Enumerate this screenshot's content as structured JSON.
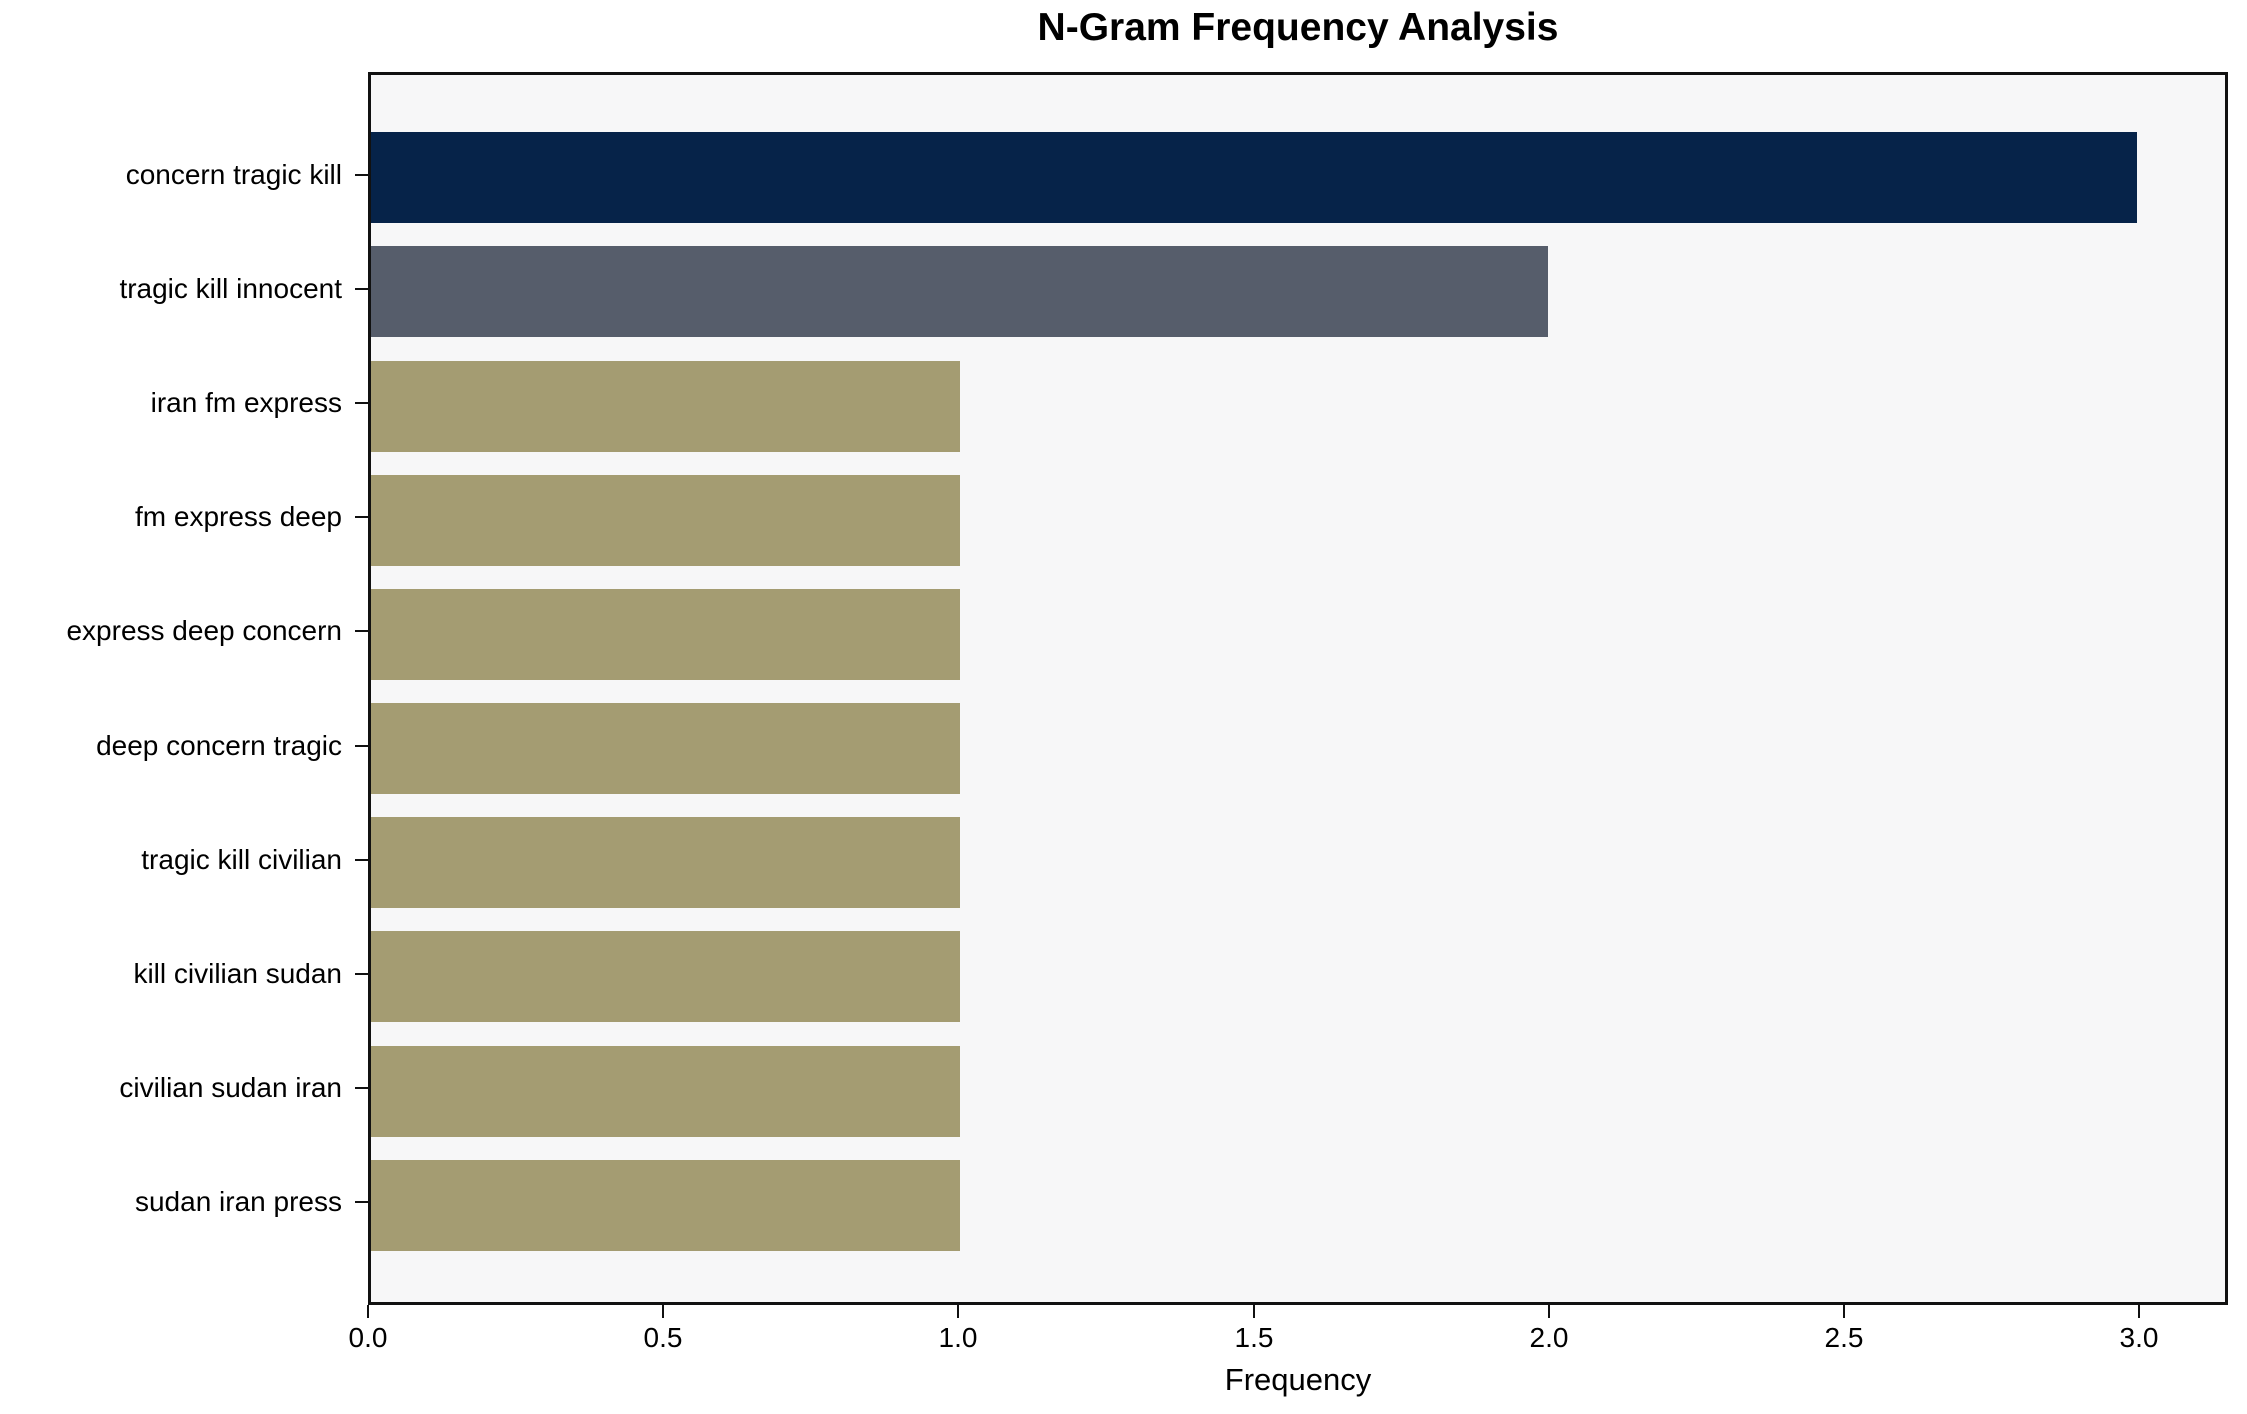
{
  "chart_data": {
    "type": "bar",
    "orientation": "horizontal",
    "title": "N-Gram Frequency Analysis",
    "xlabel": "Frequency",
    "ylabel": "",
    "categories": [
      "concern tragic kill",
      "tragic kill innocent",
      "iran fm express",
      "fm express deep",
      "express deep concern",
      "deep concern tragic",
      "tragic kill civilian",
      "kill civilian sudan",
      "civilian sudan iran",
      "sudan iran press"
    ],
    "values": [
      3,
      2,
      1,
      1,
      1,
      1,
      1,
      1,
      1,
      1
    ],
    "bar_colors": [
      "#062349",
      "#565d6b",
      "#a49c72",
      "#a49c72",
      "#a49c72",
      "#a49c72",
      "#a49c72",
      "#a49c72",
      "#a49c72",
      "#a49c72"
    ],
    "xlim": [
      0,
      3.15
    ],
    "xticks": [
      0,
      0.5,
      1,
      1.5,
      2,
      2.5,
      3
    ],
    "xtick_labels": [
      "0.0",
      "0.5",
      "1.0",
      "1.5",
      "2.0",
      "2.5",
      "3.0"
    ],
    "grid": false,
    "legend": null,
    "colors": {
      "plot_background": "#f7f7f8",
      "figure_background": "#ffffff",
      "spine": "#111111",
      "text": "#000000"
    }
  }
}
